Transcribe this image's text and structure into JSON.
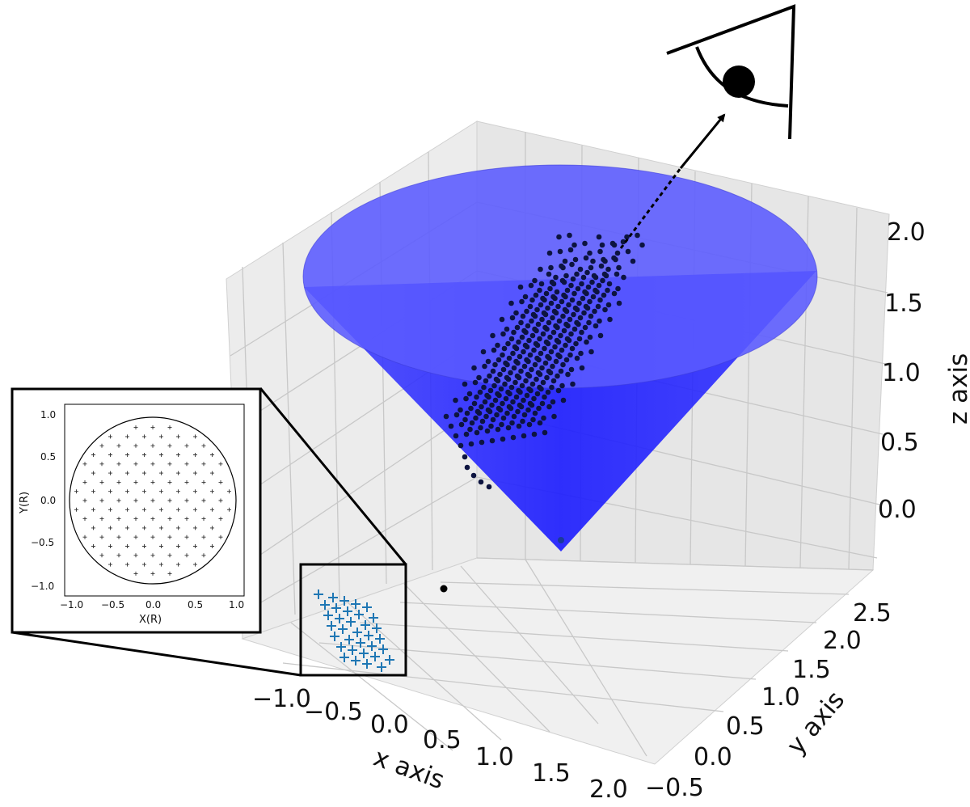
{
  "axes3d": {
    "x_label": "x axis",
    "y_label": "y axis",
    "z_label": "z axis",
    "x_ticks": [
      "−1.0",
      "−0.5",
      "0.0",
      "0.5",
      "1.0",
      "1.5",
      "2.0"
    ],
    "y_ticks": [
      "−0.5",
      "0.0",
      "0.5",
      "1.0",
      "1.5",
      "2.0",
      "2.5"
    ],
    "z_ticks": [
      "0.0",
      "0.5",
      "1.0",
      "1.5",
      "2.0"
    ],
    "cone_color": "#1a1aff",
    "point_color": "#0d1440",
    "marker_color": "#1f77b4"
  },
  "inset": {
    "x_label": "X(R)",
    "y_label": "Y(R)",
    "x_ticks": [
      "−1.0",
      "−0.5",
      "0.0",
      "0.5",
      "1.0"
    ],
    "y_ticks": [
      "1.0",
      "0.5",
      "0.0",
      "−0.5",
      "−1.0"
    ]
  },
  "icons": {
    "eye": "eye-icon",
    "arrow": "view-direction-arrow"
  }
}
